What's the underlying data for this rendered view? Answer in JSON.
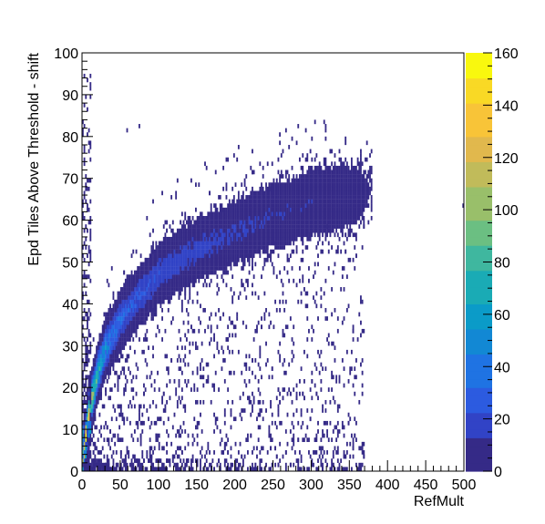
{
  "chart_data": {
    "type": "heatmap",
    "title": "",
    "xlabel": "RefMult",
    "ylabel": "Epd Tiles Above Threshold - shift",
    "xlim": [
      0,
      500
    ],
    "ylim": [
      0,
      100
    ],
    "zlim": [
      0,
      160
    ],
    "x_ticks": [
      "0",
      "50",
      "100",
      "150",
      "200",
      "250",
      "300",
      "350",
      "400",
      "450",
      "500"
    ],
    "y_ticks": [
      "0",
      "10",
      "20",
      "30",
      "40",
      "50",
      "60",
      "70",
      "80",
      "90",
      "100"
    ],
    "z_ticks": [
      "0",
      "20",
      "40",
      "60",
      "80",
      "100",
      "120",
      "140",
      "160"
    ],
    "grid": false,
    "palette": [
      "#352a87",
      "#3143c6",
      "#2c5be0",
      "#1f73e3",
      "#1288d4",
      "#0b9bc8",
      "#1aabb5",
      "#3fb79f",
      "#6bbf82",
      "#99bf6a",
      "#c1bb5a",
      "#e1b84d",
      "#f8c438",
      "#f9d925",
      "#f9f80e"
    ],
    "band": {
      "description": "main correlation band",
      "points": [
        {
          "x": 5,
          "y": 8
        },
        {
          "x": 10,
          "y": 15
        },
        {
          "x": 20,
          "y": 23
        },
        {
          "x": 30,
          "y": 29
        },
        {
          "x": 50,
          "y": 36
        },
        {
          "x": 75,
          "y": 42
        },
        {
          "x": 100,
          "y": 47
        },
        {
          "x": 150,
          "y": 53
        },
        {
          "x": 200,
          "y": 57
        },
        {
          "x": 250,
          "y": 61
        },
        {
          "x": 300,
          "y": 64
        },
        {
          "x": 350,
          "y": 66
        },
        {
          "x": 375,
          "y": 67
        }
      ],
      "peak_counts": 160
    }
  }
}
